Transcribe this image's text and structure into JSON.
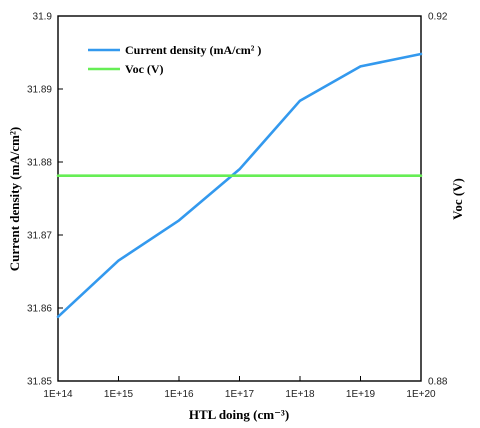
{
  "chart_data": {
    "type": "line",
    "x": [
      "1E+14",
      "1E+15",
      "1E+16",
      "1E+17",
      "1E+18",
      "1E+19",
      "1E+20"
    ],
    "xlabel": "HTL doing (cm⁻³)",
    "ylabel": "Current density (mA/cm²)",
    "ylim": [
      31.85,
      31.9
    ],
    "yticks": [
      "31.85",
      "31.86",
      "31.87",
      "31.88",
      "31.89",
      "31.9"
    ],
    "y2label": "Voc (V)",
    "y2lim": [
      0.88,
      0.92
    ],
    "y2ticks": [
      "0.88",
      "0.92"
    ],
    "legend_position": "top-left",
    "grid": false,
    "series": [
      {
        "name": "Current density (mA/cm² )",
        "axis": "left",
        "color": "#3399ee",
        "values": [
          31.8588,
          31.8665,
          31.872,
          31.879,
          31.8884,
          31.8931,
          31.8948
        ]
      },
      {
        "name": "Voc (V)",
        "axis": "right",
        "color": "#66ee55",
        "values": [
          0.9025,
          0.9025,
          0.9025,
          0.9025,
          0.9025,
          0.9025,
          0.9025
        ]
      }
    ]
  }
}
